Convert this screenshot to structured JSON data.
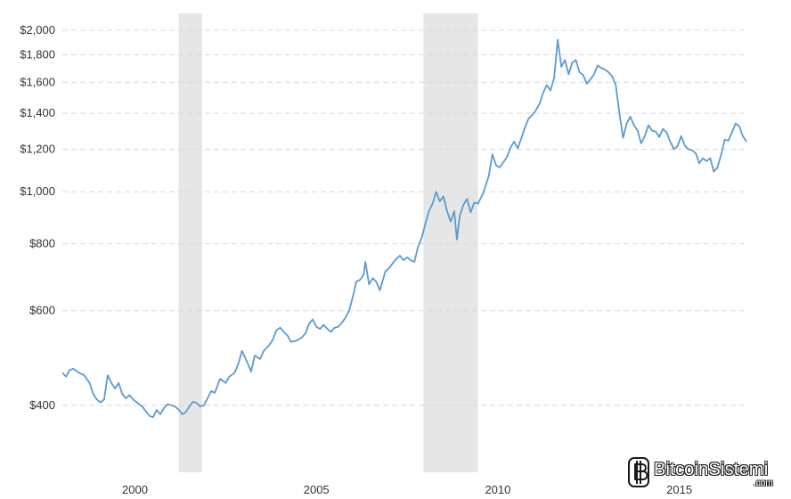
{
  "chart_data": {
    "type": "line",
    "y_scale": "log",
    "ylim": [
      300,
      2150
    ],
    "xlim": [
      1998.0,
      2016.85
    ],
    "grid": true,
    "y_ticks": [
      {
        "value": 400,
        "label": "$400"
      },
      {
        "value": 600,
        "label": "$600"
      },
      {
        "value": 800,
        "label": "$800"
      },
      {
        "value": 1000,
        "label": "$1,000"
      },
      {
        "value": 1200,
        "label": "$1,200"
      },
      {
        "value": 1400,
        "label": "$1,400"
      },
      {
        "value": 1600,
        "label": "$1,600"
      },
      {
        "value": 1800,
        "label": "$1,800"
      },
      {
        "value": 2000,
        "label": "$2,000"
      }
    ],
    "x_ticks": [
      {
        "value": 2000,
        "label": "2000"
      },
      {
        "value": 2005,
        "label": "2005"
      },
      {
        "value": 2010,
        "label": "2010"
      },
      {
        "value": 2015,
        "label": "2015"
      }
    ],
    "recessions": [
      [
        2001.2,
        2001.85
      ],
      [
        2007.95,
        2009.45
      ]
    ],
    "series": [
      {
        "color": "#5b9bd1",
        "points": [
          [
            1998.0,
            460
          ],
          [
            1998.1,
            452
          ],
          [
            1998.2,
            465
          ],
          [
            1998.3,
            468
          ],
          [
            1998.45,
            460
          ],
          [
            1998.6,
            455
          ],
          [
            1998.75,
            440
          ],
          [
            1998.85,
            420
          ],
          [
            1998.95,
            410
          ],
          [
            1999.05,
            405
          ],
          [
            1999.15,
            410
          ],
          [
            1999.25,
            455
          ],
          [
            1999.35,
            440
          ],
          [
            1999.45,
            430
          ],
          [
            1999.55,
            440
          ],
          [
            1999.65,
            420
          ],
          [
            1999.75,
            412
          ],
          [
            1999.85,
            418
          ],
          [
            1999.95,
            410
          ],
          [
            2000.05,
            405
          ],
          [
            2000.2,
            398
          ],
          [
            2000.3,
            390
          ],
          [
            2000.4,
            382
          ],
          [
            2000.5,
            380
          ],
          [
            2000.6,
            392
          ],
          [
            2000.7,
            385
          ],
          [
            2000.8,
            395
          ],
          [
            2000.9,
            402
          ],
          [
            2001.0,
            400
          ],
          [
            2001.1,
            398
          ],
          [
            2001.2,
            393
          ],
          [
            2001.3,
            385
          ],
          [
            2001.4,
            388
          ],
          [
            2001.5,
            398
          ],
          [
            2001.6,
            406
          ],
          [
            2001.7,
            404
          ],
          [
            2001.8,
            398
          ],
          [
            2001.9,
            400
          ],
          [
            2002.0,
            412
          ],
          [
            2002.1,
            425
          ],
          [
            2002.2,
            422
          ],
          [
            2002.35,
            448
          ],
          [
            2002.5,
            440
          ],
          [
            2002.6,
            452
          ],
          [
            2002.75,
            460
          ],
          [
            2002.85,
            478
          ],
          [
            2002.95,
            505
          ],
          [
            2003.1,
            480
          ],
          [
            2003.2,
            462
          ],
          [
            2003.3,
            495
          ],
          [
            2003.45,
            488
          ],
          [
            2003.55,
            505
          ],
          [
            2003.7,
            518
          ],
          [
            2003.8,
            530
          ],
          [
            2003.9,
            552
          ],
          [
            2004.0,
            558
          ],
          [
            2004.1,
            548
          ],
          [
            2004.2,
            540
          ],
          [
            2004.3,
            525
          ],
          [
            2004.45,
            528
          ],
          [
            2004.6,
            535
          ],
          [
            2004.7,
            545
          ],
          [
            2004.8,
            568
          ],
          [
            2004.9,
            578
          ],
          [
            2005.0,
            560
          ],
          [
            2005.1,
            555
          ],
          [
            2005.2,
            565
          ],
          [
            2005.3,
            555
          ],
          [
            2005.4,
            548
          ],
          [
            2005.5,
            558
          ],
          [
            2005.6,
            560
          ],
          [
            2005.7,
            570
          ],
          [
            2005.8,
            582
          ],
          [
            2005.9,
            600
          ],
          [
            2006.0,
            635
          ],
          [
            2006.1,
            680
          ],
          [
            2006.2,
            685
          ],
          [
            2006.3,
            700
          ],
          [
            2006.35,
            740
          ],
          [
            2006.45,
            672
          ],
          [
            2006.55,
            690
          ],
          [
            2006.65,
            680
          ],
          [
            2006.75,
            655
          ],
          [
            2006.9,
            710
          ],
          [
            2007.0,
            720
          ],
          [
            2007.1,
            735
          ],
          [
            2007.2,
            750
          ],
          [
            2007.3,
            760
          ],
          [
            2007.4,
            745
          ],
          [
            2007.5,
            755
          ],
          [
            2007.6,
            745
          ],
          [
            2007.7,
            740
          ],
          [
            2007.8,
            790
          ],
          [
            2007.9,
            820
          ],
          [
            2008.0,
            870
          ],
          [
            2008.1,
            920
          ],
          [
            2008.2,
            950
          ],
          [
            2008.3,
            1000
          ],
          [
            2008.4,
            960
          ],
          [
            2008.5,
            980
          ],
          [
            2008.6,
            920
          ],
          [
            2008.7,
            880
          ],
          [
            2008.8,
            920
          ],
          [
            2008.87,
            815
          ],
          [
            2008.95,
            900
          ],
          [
            2009.05,
            945
          ],
          [
            2009.15,
            970
          ],
          [
            2009.25,
            915
          ],
          [
            2009.35,
            955
          ],
          [
            2009.45,
            950
          ],
          [
            2009.6,
            995
          ],
          [
            2009.75,
            1070
          ],
          [
            2009.85,
            1175
          ],
          [
            2009.95,
            1120
          ],
          [
            2010.05,
            1110
          ],
          [
            2010.15,
            1135
          ],
          [
            2010.25,
            1160
          ],
          [
            2010.35,
            1210
          ],
          [
            2010.45,
            1240
          ],
          [
            2010.55,
            1205
          ],
          [
            2010.65,
            1260
          ],
          [
            2010.75,
            1320
          ],
          [
            2010.85,
            1370
          ],
          [
            2010.95,
            1390
          ],
          [
            2011.05,
            1420
          ],
          [
            2011.15,
            1460
          ],
          [
            2011.25,
            1530
          ],
          [
            2011.35,
            1580
          ],
          [
            2011.45,
            1545
          ],
          [
            2011.55,
            1630
          ],
          [
            2011.65,
            1920
          ],
          [
            2011.75,
            1710
          ],
          [
            2011.85,
            1760
          ],
          [
            2011.95,
            1655
          ],
          [
            2012.05,
            1740
          ],
          [
            2012.15,
            1760
          ],
          [
            2012.25,
            1670
          ],
          [
            2012.35,
            1650
          ],
          [
            2012.45,
            1590
          ],
          [
            2012.55,
            1620
          ],
          [
            2012.65,
            1655
          ],
          [
            2012.75,
            1720
          ],
          [
            2012.85,
            1700
          ],
          [
            2012.95,
            1690
          ],
          [
            2013.05,
            1670
          ],
          [
            2013.15,
            1640
          ],
          [
            2013.25,
            1580
          ],
          [
            2013.35,
            1400
          ],
          [
            2013.45,
            1260
          ],
          [
            2013.55,
            1340
          ],
          [
            2013.65,
            1380
          ],
          [
            2013.75,
            1330
          ],
          [
            2013.85,
            1300
          ],
          [
            2013.95,
            1230
          ],
          [
            2014.05,
            1270
          ],
          [
            2014.15,
            1330
          ],
          [
            2014.25,
            1300
          ],
          [
            2014.35,
            1295
          ],
          [
            2014.45,
            1265
          ],
          [
            2014.55,
            1310
          ],
          [
            2014.65,
            1290
          ],
          [
            2014.75,
            1240
          ],
          [
            2014.85,
            1200
          ],
          [
            2014.95,
            1215
          ],
          [
            2015.05,
            1270
          ],
          [
            2015.15,
            1220
          ],
          [
            2015.25,
            1200
          ],
          [
            2015.35,
            1195
          ],
          [
            2015.45,
            1180
          ],
          [
            2015.55,
            1130
          ],
          [
            2015.65,
            1155
          ],
          [
            2015.75,
            1140
          ],
          [
            2015.85,
            1155
          ],
          [
            2015.95,
            1090
          ],
          [
            2016.05,
            1110
          ],
          [
            2016.15,
            1170
          ],
          [
            2016.25,
            1250
          ],
          [
            2016.35,
            1245
          ],
          [
            2016.45,
            1290
          ],
          [
            2016.55,
            1340
          ],
          [
            2016.65,
            1325
          ],
          [
            2016.75,
            1270
          ],
          [
            2016.85,
            1240
          ]
        ]
      }
    ]
  },
  "watermark": {
    "text": "BitcoinSistemi",
    "subtext": ".com"
  }
}
